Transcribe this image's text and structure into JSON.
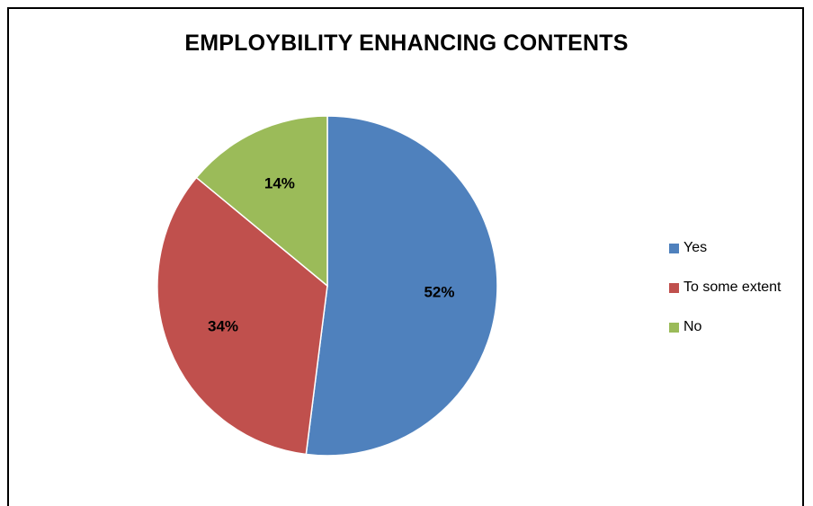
{
  "chart_data": {
    "type": "pie",
    "title": "EMPLOYBILITY ENHANCING CONTENTS",
    "slices": [
      {
        "name": "Yes",
        "value": 52,
        "label": "52%",
        "color": "#4F81BD"
      },
      {
        "name": "To some extent",
        "value": 34,
        "label": "34%",
        "color": "#C0504D"
      },
      {
        "name": "No",
        "value": 14,
        "label": "14%",
        "color": "#9BBB59"
      }
    ],
    "legend_position": "right"
  }
}
